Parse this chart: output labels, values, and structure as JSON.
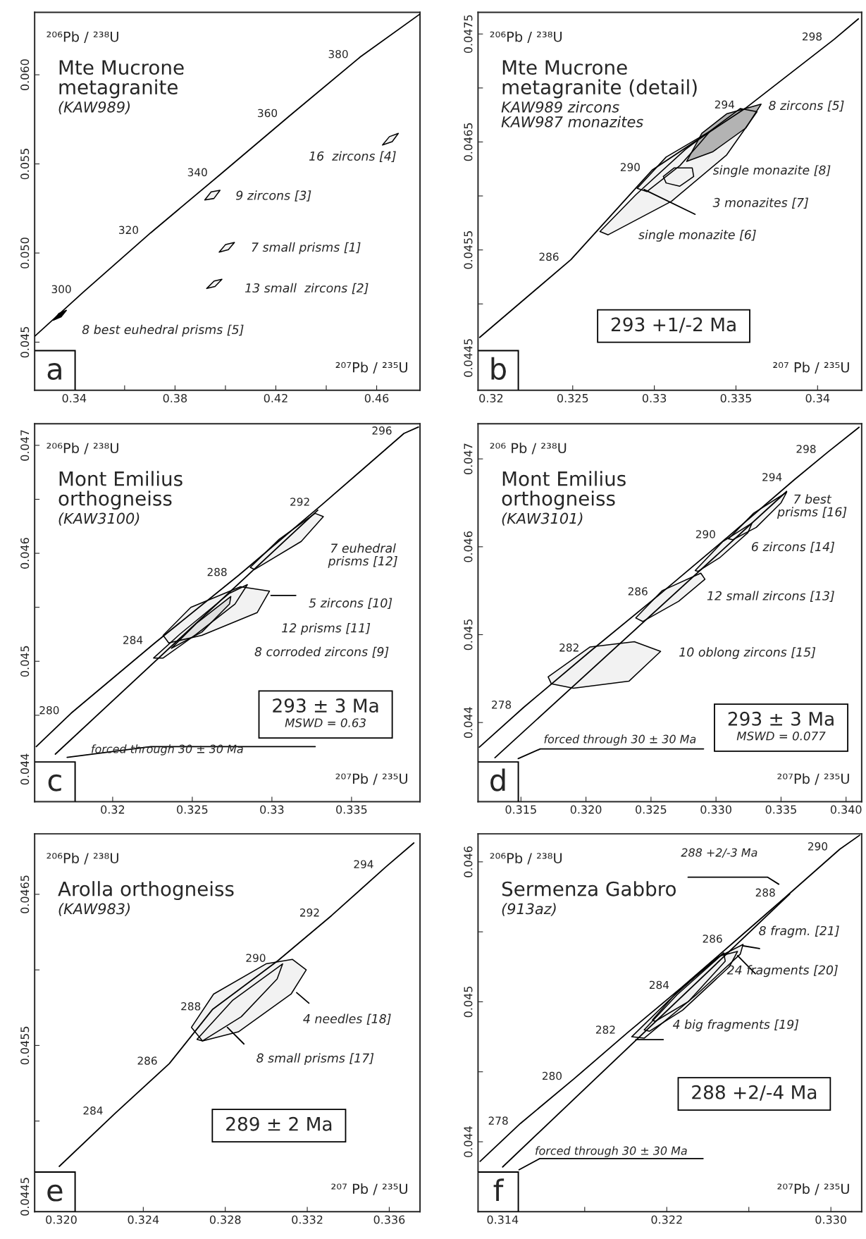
{
  "chart_data": [
    {
      "type": "line",
      "title": "Mte Mucrone\nmetagranite",
      "subtitle": "(KAW989)",
      "xlabel": "²⁰⁷Pb / ²³⁵U",
      "ylabel": "²⁰⁶Pb / ²³⁸U",
      "xlim": [
        0.3243,
        0.4772
      ],
      "ylim": [
        0.0423,
        0.0635
      ],
      "xticks": [
        0.34,
        {
          "value": 0.36,
          "label": null
        },
        0.38,
        {
          "value": 0.4,
          "label": null
        },
        0.42,
        {
          "value": 0.44,
          "label": null
        },
        0.46
      ],
      "yticks": [
        0.045,
        {
          "value": 0.05,
          "label": "0.050"
        },
        0.055,
        {
          "value": 0.06,
          "label": "0.060"
        }
      ],
      "series": [
        {
          "color": "#000000",
          "x": [
            0.3244,
            0.34364,
            0.3703,
            0.39763,
            0.4254,
            0.4535,
            0.4771
          ],
          "values": [
            0.04534,
            0.04781,
            0.05113,
            0.05437,
            0.05769,
            0.061,
            0.0634
          ]
        },
        {
          "type": "area",
          "color": "#000000",
          "x": [
            0.33174,
            0.33394,
            0.33691,
            0.33482
          ],
          "values": [
            0.04623,
            0.04661,
            0.04679,
            0.04642
          ]
        },
        {
          "type": "area",
          "color": "#f2f2f2",
          "x": [
            0.39256,
            0.39551,
            0.39862,
            0.39587
          ],
          "values": [
            0.04801,
            0.04843,
            0.04853,
            0.04812
          ]
        },
        {
          "type": "area",
          "color": "#f2f2f2",
          "x": [
            0.39752,
            0.40006,
            0.40358,
            0.40116
          ],
          "values": [
            0.05005,
            0.05048,
            0.05059,
            0.05019
          ]
        },
        {
          "type": "area",
          "color": "#f2f2f2",
          "x": [
            0.39179,
            0.39433,
            0.39785,
            0.39543
          ],
          "values": [
            0.05298,
            0.05343,
            0.05352,
            0.05306
          ]
        },
        {
          "type": "area",
          "color": "#f2f2f2",
          "x": [
            0.46231,
            0.46507,
            0.4686,
            0.46617
          ],
          "values": [
            0.05606,
            0.05653,
            0.05671,
            0.05625
          ]
        }
      ],
      "annotations": [
        {
          "text": "300",
          "x": 0.34364,
          "y": 0.04781
        },
        {
          "text": "320",
          "x": 0.3703,
          "y": 0.05113
        },
        {
          "text": "340",
          "x": 0.39763,
          "y": 0.05437
        },
        {
          "text": "360",
          "x": 0.4254,
          "y": 0.05769
        },
        {
          "text": "380",
          "x": 0.4535,
          "y": 0.061
        },
        "16  zircons [4]",
        "9 zircons [3]",
        "7 small prisms [1]",
        "13 small  zircons [2]",
        "8 best euhedral prisms [5]",
        "a"
      ]
    },
    {
      "type": "line",
      "title": "Mte Mucrone\nmetagranite (detail)",
      "subtitle": "KAW989 zircons\nKAW987 monazites",
      "xlabel": "²⁰⁷ Pb / ²³⁵U",
      "ylabel": "²⁰⁶Pb / ²³⁸U",
      "xlim": [
        0.3192,
        0.3427
      ],
      "ylim": [
        0.0442,
        0.0477
      ],
      "xticks": [
        0.32,
        0.325,
        0.33,
        0.335,
        0.34
      ],
      "yticks": [
        0.0445,
        {
          "value": 0.045,
          "label": null
        },
        0.0455,
        {
          "value": 0.046,
          "label": null
        },
        0.0465,
        {
          "value": 0.047,
          "label": null
        },
        0.0475
      ],
      "series": [
        {
          "color": "#000000",
          "x": [
            0.3193,
            0.32489,
            0.32987,
            0.33565,
            0.34101,
            0.3425
          ],
          "values": [
            0.04469,
            0.04541,
            0.04624,
            0.04682,
            0.04745,
            0.04764
          ]
        },
        {
          "type": "area",
          "color": "#f2f2f2",
          "x": [
            0.32667,
            0.32886,
            0.3319,
            0.33527,
            0.33629,
            0.33443,
            0.33105,
            0.32717
          ],
          "values": [
            0.04567,
            0.04601,
            0.04643,
            0.04681,
            0.04678,
            0.04638,
            0.04595,
            0.04564
          ]
        },
        {
          "type": "area",
          "color": "#f2f2f2",
          "x": [
            0.32895,
            0.33072,
            0.33342,
            0.33274,
            0.33156,
            0.32954
          ],
          "values": [
            0.04607,
            0.04636,
            0.0466,
            0.04648,
            0.04628,
            0.04604
          ]
        },
        {
          "type": "area",
          "color": "#f2f2f2",
          "x": [
            0.33055,
            0.33122,
            0.33232,
            0.33241,
            0.33156,
            0.33072
          ],
          "values": [
            0.04618,
            0.04626,
            0.04626,
            0.04618,
            0.04609,
            0.04612
          ]
        },
        {
          "type": "area",
          "color": "#b3b3b3",
          "x": [
            0.33198,
            0.33291,
            0.33443,
            0.33654,
            0.33561,
            0.33359
          ],
          "values": [
            0.04632,
            0.04658,
            0.04676,
            0.04685,
            0.04663,
            0.04641
          ]
        },
        {
          "color": "#000000",
          "x": [
            0.32937,
            0.33249
          ],
          "values": [
            0.04606,
            0.04583
          ]
        }
      ],
      "annotations": [
        {
          "text": "286",
          "x": 0.32489,
          "y": 0.04541
        },
        {
          "text": "290",
          "x": 0.32987,
          "y": 0.04624
        },
        {
          "text": "294",
          "x": 0.33565,
          "y": 0.04682
        },
        {
          "text": "298",
          "x": 0.34101,
          "y": 0.04745
        },
        "8 zircons [5]",
        "single monazite [8]",
        "3 monazites [7]",
        "single monazite [6]",
        "b",
        "293 +1/-2 Ma"
      ]
    },
    {
      "type": "line",
      "title": "Mont Emilius\northogneiss",
      "subtitle": "(KAW3100)",
      "xlabel": "²⁰⁷Pb / ²³⁵U",
      "ylabel": "²⁰⁶Pb / ²³⁸U",
      "xlim": [
        0.3151,
        0.3393
      ],
      "ylim": [
        0.0437,
        0.0472
      ],
      "xticks": [
        0.32,
        0.325,
        0.33,
        0.335
      ],
      "yticks": [
        0.044,
        {
          "value": 0.0445,
          "label": null
        },
        0.045,
        {
          "value": 0.0455,
          "label": null
        },
        0.046,
        {
          "value": 0.0465,
          "label": null
        },
        0.047
      ],
      "series": [
        {
          "color": "#000000",
          "x": [
            0.3152,
            0.3174,
            0.32265,
            0.32794,
            0.33314,
            0.33829,
            0.3392
          ],
          "values": [
            0.04421,
            0.04452,
            0.04517,
            0.0458,
            0.04645,
            0.04711,
            0.04717
          ]
        },
        {
          "color": "#000000",
          "x": [
            0.3164,
            0.33288
          ],
          "values": [
            0.04414,
            0.0464
          ]
        },
        {
          "type": "area",
          "color": "#f2f2f2",
          "x": [
            0.32864,
            0.33046,
            0.33271,
            0.33323,
            0.33184,
            0.3289
          ],
          "values": [
            0.04587,
            0.04613,
            0.04637,
            0.04634,
            0.04611,
            0.04585
          ]
        },
        {
          "type": "area",
          "color": "#f2f2f2",
          "x": [
            0.32317,
            0.32491,
            0.32803,
            0.32985,
            0.32907,
            0.3256,
            0.32352
          ],
          "values": [
            0.04524,
            0.0455,
            0.04569,
            0.04565,
            0.04545,
            0.04524,
            0.04517
          ]
        },
        {
          "type": "area",
          "color": "#f2f2f2",
          "x": [
            0.32257,
            0.32421,
            0.32734,
            0.32846,
            0.32768,
            0.32525,
            0.32317
          ],
          "values": [
            0.04503,
            0.04525,
            0.04563,
            0.04571,
            0.04553,
            0.04525,
            0.04503
          ]
        },
        {
          "type": "area",
          "color": "#e0e0e0",
          "x": [
            0.32369,
            0.32525,
            0.32742,
            0.32734,
            0.3256
          ],
          "values": [
            0.04512,
            0.04535,
            0.0456,
            0.04553,
            0.04527
          ]
        },
        {
          "color": "#000000",
          "x": [
            0.32994,
            0.3315
          ],
          "values": [
            0.04561,
            0.04561
          ]
        },
        {
          "color": "#000000",
          "x": [
            0.33272,
            0.3224,
            0.31714
          ],
          "values": [
            0.04421,
            0.04421,
            0.04411
          ]
        }
      ],
      "annotations": [
        {
          "text": "280",
          "x": 0.3174,
          "y": 0.04452
        },
        {
          "text": "284",
          "x": 0.32265,
          "y": 0.04517
        },
        {
          "text": "288",
          "x": 0.32794,
          "y": 0.0458
        },
        {
          "text": "292",
          "x": 0.33314,
          "y": 0.04645
        },
        {
          "text": "296",
          "x": 0.33829,
          "y": 0.04711
        },
        "7 euhedral\nprisms [12]",
        "5 zircons [10]",
        "12 prisms [11]",
        "8 corroded zircons [9]",
        "forced through 30 ± 30 Ma",
        "c",
        "293 ± 3 Ma",
        "MSWD = 0.63"
      ]
    },
    {
      "type": "line",
      "title": "Mont Emilius\northogneiss",
      "subtitle": "(KAW3101)",
      "xlabel": "²⁰⁷Pb / ²³⁵U",
      "ylabel": "²⁰⁶ Pb / ²³⁸U",
      "xlim": [
        0.3117,
        0.3412
      ],
      "ylim": [
        0.0431,
        0.0474
      ],
      "xticks": [
        0.315,
        {
          "value": 0.32,
          "label": "0.320"
        },
        0.325,
        {
          "value": 0.33,
          "label": "0.330"
        },
        0.335,
        {
          "value": 0.34,
          "label": "0.340"
        }
      ],
      "yticks": [
        0.044,
        0.045,
        0.046,
        0.047
      ],
      "series": [
        {
          "color": "#000000",
          "x": [
            0.3118,
            0.31519,
            0.3204,
            0.32568,
            0.33089,
            0.336,
            0.33862,
            0.341
          ],
          "values": [
            0.04372,
            0.04417,
            0.04482,
            0.04546,
            0.04611,
            0.04676,
            0.04708,
            0.04736
          ]
        },
        {
          "color": "#000000",
          "x": [
            0.313,
            0.33543
          ],
          "values": [
            0.0436,
            0.04663
          ]
        },
        {
          "type": "area",
          "color": "#f2f2f2",
          "x": [
            0.33096,
            0.33287,
            0.33543,
            0.335,
            0.33309,
            0.33128
          ],
          "values": [
            0.04609,
            0.04638,
            0.04662,
            0.0465,
            0.04622,
            0.04608
          ]
        },
        {
          "type": "area",
          "color": "#f2f2f2",
          "x": [
            0.3284,
            0.33053,
            0.33277,
            0.33245,
            0.33032,
            0.32862
          ],
          "values": [
            0.04573,
            0.04606,
            0.04627,
            0.04616,
            0.04588,
            0.04572
          ]
        },
        {
          "type": "area",
          "color": "#f2f2f2",
          "x": [
            0.32383,
            0.32585,
            0.32883,
            0.32915,
            0.32713,
            0.32436
          ],
          "values": [
            0.04519,
            0.0455,
            0.0457,
            0.04563,
            0.04538,
            0.04515
          ]
        },
        {
          "type": "area",
          "color": "#f2f2f2",
          "x": [
            0.31709,
            0.32032,
            0.32372,
            0.32574,
            0.3233,
            0.31904,
            0.31734
          ],
          "values": [
            0.04452,
            0.04486,
            0.04492,
            0.04481,
            0.04447,
            0.04439,
            0.04444
          ]
        },
        {
          "color": "#000000",
          "x": [
            0.32904,
            0.31649,
            0.31479
          ],
          "values": [
            0.0437,
            0.0437,
            0.04359
          ]
        }
      ],
      "annotations": [
        {
          "text": "278",
          "x": 0.31519,
          "y": 0.04417
        },
        {
          "text": "282",
          "x": 0.3204,
          "y": 0.04482
        },
        {
          "text": "286",
          "x": 0.32568,
          "y": 0.04546
        },
        {
          "text": "290",
          "x": 0.33089,
          "y": 0.04611
        },
        {
          "text": "294",
          "x": 0.336,
          "y": 0.04676
        },
        {
          "text": "298",
          "x": 0.33862,
          "y": 0.04708
        },
        "7 best\nprisms [16]",
        "6 zircons [14]",
        "12 small zircons [13]",
        "10 oblong zircons [15]",
        "forced through 30 ± 30 Ma",
        "d",
        "293 ± 3 Ma",
        "MSWD = 0.077"
      ]
    },
    {
      "type": "line",
      "title": "Arolla orthogneiss",
      "subtitle": "(KAW983)",
      "xlabel": "²⁰⁷ Pb / ²³⁵U",
      "ylabel": "²⁰⁶Pb / ²³⁸U",
      "xlim": [
        0.3187,
        0.3375
      ],
      "ylim": [
        0.0444,
        0.0469
      ],
      "xticks": [
        {
          "value": 0.32,
          "label": "0.320"
        },
        0.324,
        0.328,
        0.332,
        0.336
      ],
      "yticks": [
        0.0445,
        {
          "value": 0.045,
          "label": null
        },
        0.0455,
        {
          "value": 0.046,
          "label": null
        },
        0.0465
      ],
      "series": [
        {
          "color": "#000000",
          "x": [
            0.3199,
            0.32262,
            0.32527,
            0.32739,
            0.33056,
            0.33319,
            0.33582,
            0.3372
          ],
          "values": [
            0.0447,
            0.04505,
            0.04538,
            0.04574,
            0.04606,
            0.04636,
            0.04668,
            0.04684
          ]
        },
        {
          "type": "area",
          "color": "#f2f2f2",
          "x": [
            0.32635,
            0.32743,
            0.32999,
            0.33127,
            0.33195,
            0.33121,
            0.32864,
            0.32689
          ],
          "values": [
            0.04562,
            0.04584,
            0.04604,
            0.04607,
            0.046,
            0.04584,
            0.04559,
            0.04553
          ]
        },
        {
          "type": "area",
          "color": "#f2f2f2",
          "x": [
            0.32662,
            0.32837,
            0.3308,
            0.33053,
            0.32878,
            0.32689
          ],
          "values": [
            0.04554,
            0.0458,
            0.04604,
            0.04594,
            0.04569,
            0.04553
          ]
        },
        {
          "color": "#000000",
          "x": [
            0.33148,
            0.33208
          ],
          "values": [
            0.04585,
            0.04578
          ]
        },
        {
          "color": "#000000",
          "x": [
            0.3281,
            0.32891
          ],
          "values": [
            0.04562,
            0.04551
          ]
        }
      ],
      "annotations": [
        {
          "text": "284",
          "x": 0.32262,
          "y": 0.04505
        },
        {
          "text": "286",
          "x": 0.32527,
          "y": 0.04538
        },
        {
          "text": "288",
          "x": 0.32739,
          "y": 0.04574
        },
        {
          "text": "290",
          "x": 0.33056,
          "y": 0.04606
        },
        {
          "text": "292",
          "x": 0.33319,
          "y": 0.04636
        },
        {
          "text": "294",
          "x": 0.33582,
          "y": 0.04668
        },
        "4 needles [18]",
        "8 small prisms [17]",
        "e",
        "289 ± 2 Ma"
      ]
    },
    {
      "type": "line",
      "title": "Sermenza Gabbro",
      "subtitle": "(913az)",
      "xlabel": "²⁰⁷Pb / ²³⁵U",
      "ylabel": "²⁰⁶Pb / ²³⁸U",
      "xlim": [
        0.3128,
        0.3315
      ],
      "ylim": [
        0.0435,
        0.0462
      ],
      "xticks": [
        0.314,
        {
          "value": 0.318,
          "label": null
        },
        0.322,
        {
          "value": 0.326,
          "label": null
        },
        {
          "value": 0.33,
          "label": "0.330"
        }
      ],
      "yticks": [
        0.044,
        {
          "value": 0.0445,
          "label": null
        },
        0.045,
        {
          "value": 0.0455,
          "label": null
        },
        0.046
      ],
      "series": [
        {
          "color": "#000000",
          "x": [
            0.3129,
            0.31486,
            0.31748,
            0.32009,
            0.3227,
            0.3253,
            0.32788,
            0.33043,
            0.3314
          ],
          "values": [
            0.04386,
            0.04413,
            0.04445,
            0.04478,
            0.0451,
            0.04543,
            0.04576,
            0.04609,
            0.04619
          ]
        },
        {
          "color": "#000000",
          "x": [
            0.314,
            0.32799
          ],
          "values": [
            0.04382,
            0.04577
          ]
        },
        {
          "type": "area",
          "color": "#f2f2f2",
          "x": [
            0.32029,
            0.3221,
            0.32438,
            0.32572,
            0.32558,
            0.32344,
            0.3209
          ],
          "values": [
            0.04475,
            0.04501,
            0.04531,
            0.04541,
            0.04534,
            0.04505,
            0.04474
          ]
        },
        {
          "type": "area",
          "color": "#f2f2f2",
          "x": [
            0.3209,
            0.3225,
            0.32464,
            0.32545,
            0.32505,
            0.32277,
            0.32116
          ],
          "values": [
            0.0448,
            0.04505,
            0.04533,
            0.04536,
            0.04525,
            0.04494,
            0.04479
          ]
        },
        {
          "type": "area",
          "color": "#f2f2f2",
          "x": [
            0.3213,
            0.3225,
            0.32478,
            0.32485,
            0.32304,
            0.32143
          ],
          "values": [
            0.04487,
            0.04507,
            0.04535,
            0.04529,
            0.045,
            0.04486
          ]
        },
        {
          "color": "#000000",
          "x": [
            0.32572,
            0.32652
          ],
          "values": [
            0.0454,
            0.04538
          ]
        },
        {
          "color": "#000000",
          "x": [
            0.32545,
            0.32632
          ],
          "values": [
            0.04533,
            0.0452
          ]
        },
        {
          "color": "#000000",
          "x": [
            0.32049,
            0.32183
          ],
          "values": [
            0.04473,
            0.04473
          ]
        },
        {
          "color": "#000000",
          "x": [
            0.32746,
            0.32692,
            0.32304
          ],
          "values": [
            0.04584,
            0.04589,
            0.04589
          ]
        },
        {
          "color": "#000000",
          "x": [
            0.32377,
            0.31581,
            0.3148
          ],
          "values": [
            0.04388,
            0.04388,
            0.0438
          ]
        }
      ],
      "annotations": [
        {
          "text": "278",
          "x": 0.31486,
          "y": 0.04413
        },
        {
          "text": "280",
          "x": 0.31748,
          "y": 0.04445
        },
        {
          "text": "282",
          "x": 0.32009,
          "y": 0.04478
        },
        {
          "text": "284",
          "x": 0.3227,
          "y": 0.0451
        },
        {
          "text": "286",
          "x": 0.3253,
          "y": 0.04543
        },
        {
          "text": "288",
          "x": 0.32788,
          "y": 0.04576
        },
        {
          "text": "290",
          "x": 0.33043,
          "y": 0.04609
        },
        "8 fragm. [21]",
        "24 fragments [20]",
        "4 big fragments [19]",
        "288 +2/-3 Ma",
        "forced through 30 ± 30 Ma",
        "f",
        "288 +2/-4 Ma"
      ]
    }
  ]
}
